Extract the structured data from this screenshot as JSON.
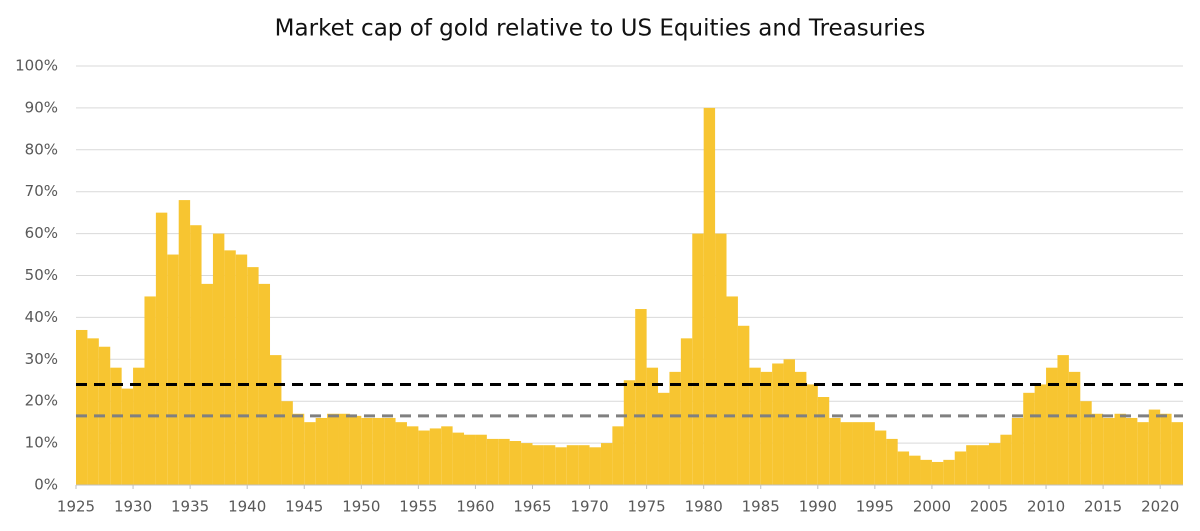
{
  "chart_data": {
    "type": "bar",
    "title": "Market cap of gold relative to US Equities and Treasuries",
    "x": [
      1925,
      1926,
      1927,
      1928,
      1929,
      1930,
      1931,
      1932,
      1933,
      1934,
      1935,
      1936,
      1937,
      1938,
      1939,
      1940,
      1941,
      1942,
      1943,
      1944,
      1945,
      1946,
      1947,
      1948,
      1949,
      1950,
      1951,
      1952,
      1953,
      1954,
      1955,
      1956,
      1957,
      1958,
      1959,
      1960,
      1961,
      1962,
      1963,
      1964,
      1965,
      1966,
      1967,
      1968,
      1969,
      1970,
      1971,
      1972,
      1973,
      1974,
      1975,
      1976,
      1977,
      1978,
      1979,
      1980,
      1981,
      1982,
      1983,
      1984,
      1985,
      1986,
      1987,
      1988,
      1989,
      1990,
      1991,
      1992,
      1993,
      1994,
      1995,
      1996,
      1997,
      1998,
      1999,
      2000,
      2001,
      2002,
      2003,
      2004,
      2005,
      2006,
      2007,
      2008,
      2009,
      2010,
      2011,
      2012,
      2013,
      2014,
      2015,
      2016,
      2017,
      2018,
      2019,
      2020,
      2021
    ],
    "values": [
      37,
      35,
      33,
      28,
      23,
      28,
      45,
      65,
      55,
      68,
      62,
      48,
      60,
      56,
      55,
      52,
      48,
      31,
      20,
      17,
      15,
      16,
      17,
      17,
      16.5,
      16,
      16,
      16,
      15,
      14,
      13,
      13.5,
      14,
      12.5,
      12,
      12,
      11,
      11,
      10.5,
      10,
      9.5,
      9.5,
      9,
      9.5,
      9.5,
      9,
      10,
      14,
      25,
      42,
      28,
      22,
      27,
      35,
      60,
      90,
      60,
      45,
      38,
      28,
      27,
      29,
      30,
      27,
      24,
      21,
      16,
      15,
      15,
      15,
      13,
      11,
      8,
      7,
      6,
      5.5,
      6,
      8,
      9.5,
      9.5,
      10,
      12,
      16,
      22,
      24,
      28,
      31,
      27,
      20,
      17,
      16,
      17,
      16,
      15,
      18,
      17,
      15
    ],
    "color": "#f7c531",
    "xlim": [
      1925,
      2022
    ],
    "xticks": [
      1925,
      1930,
      1935,
      1940,
      1945,
      1950,
      1955,
      1960,
      1965,
      1970,
      1975,
      1980,
      1985,
      1990,
      1995,
      2000,
      2005,
      2010,
      2015,
      2020
    ],
    "ylim": [
      0,
      100
    ],
    "yticks": [
      {
        "value": 0,
        "label": "0%"
      },
      {
        "value": 10,
        "label": "10%"
      },
      {
        "value": 20,
        "label": "20%"
      },
      {
        "value": 30,
        "label": "30%"
      },
      {
        "value": 40,
        "label": "40%"
      },
      {
        "value": 50,
        "label": "50%"
      },
      {
        "value": 60,
        "label": "60%"
      },
      {
        "value": 70,
        "label": "70%"
      },
      {
        "value": 80,
        "label": "80%"
      },
      {
        "value": 90,
        "label": "90%"
      },
      {
        "value": 100,
        "label": "100%"
      }
    ],
    "grid": true,
    "reference_lines": [
      {
        "value": 24,
        "color": "#000000"
      },
      {
        "value": 16.5,
        "color": "#808080"
      }
    ]
  }
}
